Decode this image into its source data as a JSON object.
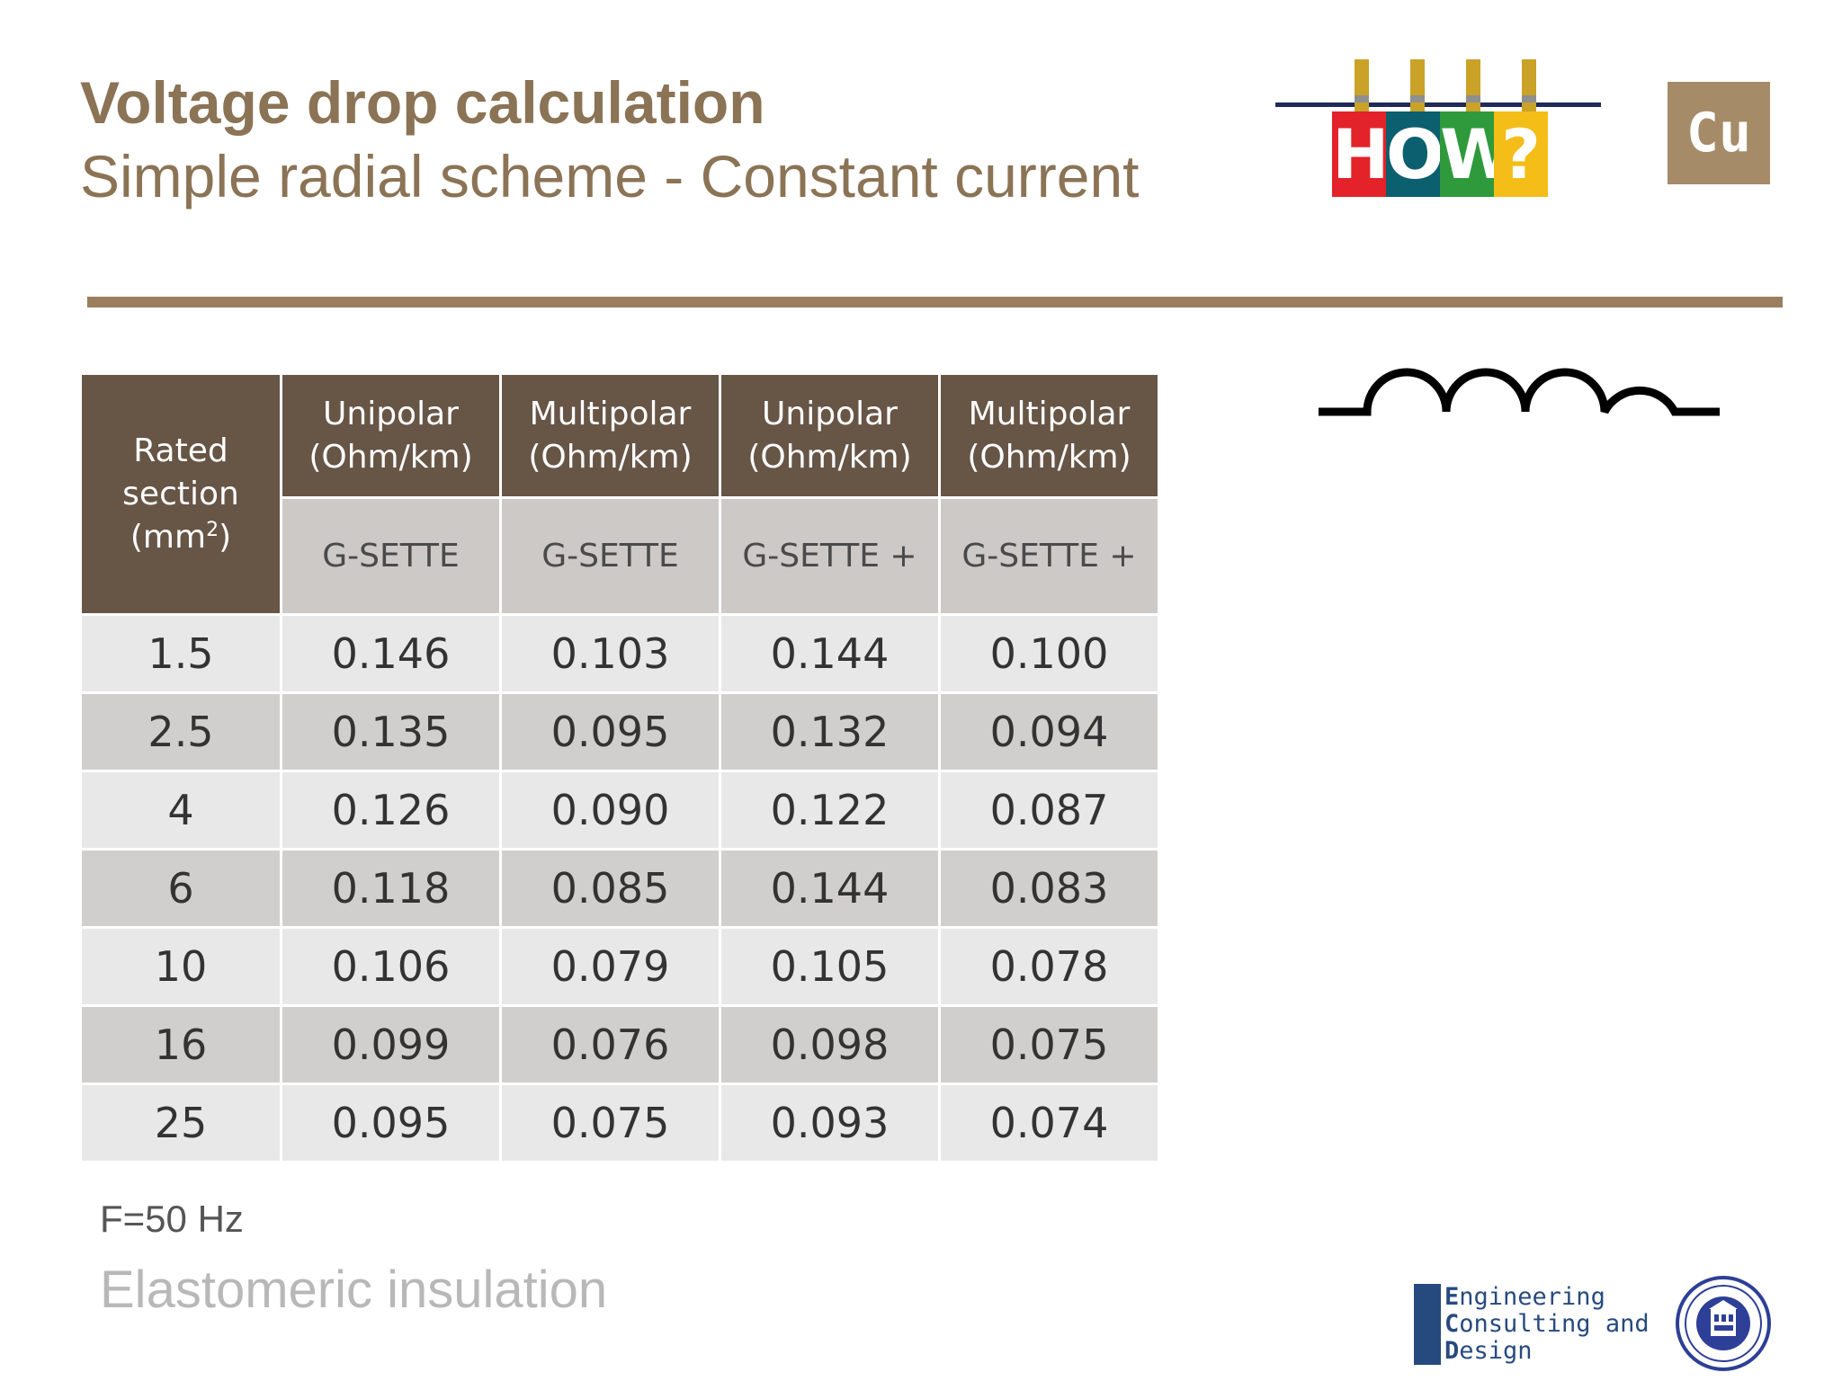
{
  "header": {
    "title": "Voltage drop calculation",
    "subtitle": "Simple radial scheme - Constant current"
  },
  "logo_how": {
    "letters": [
      "H",
      "O",
      "W",
      "?"
    ],
    "colors": [
      "#e32329",
      "#0c5f6e",
      "#2f9a3b",
      "#f5bd17"
    ]
  },
  "badge": {
    "text": "Cu",
    "color": "#a68b68"
  },
  "symbol": {
    "icon": "inductor-icon"
  },
  "table": {
    "section_header": "Rated section (mm",
    "section_header_sup": "2",
    "section_header_end": ")",
    "columns": [
      {
        "type": "Unipolar",
        "unit": "(Ohm/km)",
        "product": "G-SETTE"
      },
      {
        "type": "Multipolar",
        "unit": "(Ohm/km)",
        "product": "G-SETTE"
      },
      {
        "type": "Unipolar",
        "unit": "(Ohm/km)",
        "product": "G-SETTE +"
      },
      {
        "type": "Multipolar",
        "unit": "(Ohm/km)",
        "product": "G-SETTE +"
      }
    ],
    "rows": [
      {
        "section": "1.5",
        "values": [
          "0.146",
          "0.103",
          "0.144",
          "0.100"
        ]
      },
      {
        "section": "2.5",
        "values": [
          "0.135",
          "0.095",
          "0.132",
          "0.094"
        ]
      },
      {
        "section": "4",
        "values": [
          "0.126",
          "0.090",
          "0.122",
          "0.087"
        ]
      },
      {
        "section": "6",
        "values": [
          "0.118",
          "0.085",
          "0.144",
          "0.083"
        ]
      },
      {
        "section": "10",
        "values": [
          "0.106",
          "0.079",
          "0.105",
          "0.078"
        ]
      },
      {
        "section": "16",
        "values": [
          "0.099",
          "0.076",
          "0.098",
          "0.075"
        ]
      },
      {
        "section": "25",
        "values": [
          "0.095",
          "0.075",
          "0.093",
          "0.074"
        ]
      }
    ]
  },
  "footer": {
    "frequency": "F=50 Hz",
    "insulation": "Elastomeric insulation",
    "ecd_logo": {
      "initials": [
        "E",
        "C",
        "D"
      ],
      "rests": [
        "ngineering",
        "onsulting and",
        "esign"
      ]
    }
  }
}
